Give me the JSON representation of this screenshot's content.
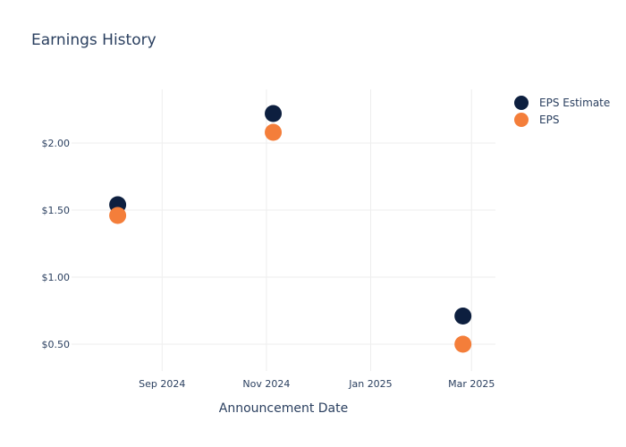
{
  "chart_data": {
    "type": "scatter",
    "title": "Earnings History",
    "xlabel": "Announcement Date",
    "ylabel": "",
    "x_ticks": [
      {
        "value": "2024-09-01",
        "label": "Sep 2024"
      },
      {
        "value": "2024-11-01",
        "label": "Nov 2024"
      },
      {
        "value": "2025-01-01",
        "label": "Jan 2025"
      },
      {
        "value": "2025-03-01",
        "label": "Mar 2025"
      }
    ],
    "y_ticks": [
      {
        "value": 0.5,
        "label": "$0.50"
      },
      {
        "value": 1.0,
        "label": "$1.00"
      },
      {
        "value": 1.5,
        "label": "$1.50"
      },
      {
        "value": 2.0,
        "label": "$2.00"
      }
    ],
    "xlim": [
      "2024-07-10",
      "2025-03-15"
    ],
    "ylim": [
      0.3,
      2.4
    ],
    "grid": true,
    "legend_position": "top-right",
    "series": [
      {
        "name": "EPS Estimate",
        "color": "#0d1f3f",
        "points": [
          {
            "x": "2024-08-06",
            "y": 1.54
          },
          {
            "x": "2024-11-05",
            "y": 2.22
          },
          {
            "x": "2025-02-24",
            "y": 0.71
          }
        ]
      },
      {
        "name": "EPS",
        "color": "#f47e3a",
        "points": [
          {
            "x": "2024-08-06",
            "y": 1.46
          },
          {
            "x": "2024-11-05",
            "y": 2.08
          },
          {
            "x": "2025-02-24",
            "y": 0.5
          }
        ]
      }
    ]
  }
}
